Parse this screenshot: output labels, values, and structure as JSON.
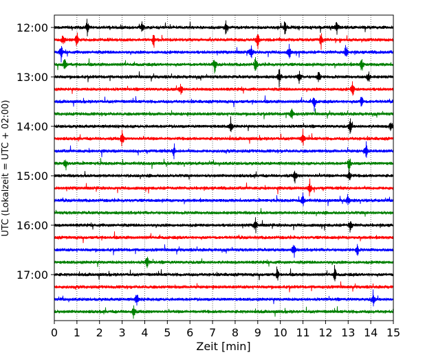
{
  "chart_data": {
    "type": "line",
    "xlabel": "Zeit  [min]",
    "ylabel": "UTC (Lokalzeit = UTC + 02:00)",
    "xlim": [
      0,
      15
    ],
    "x_ticks": [
      "0",
      "1",
      "2",
      "3",
      "4",
      "5",
      "6",
      "7",
      "8",
      "9",
      "10",
      "11",
      "12",
      "13",
      "14",
      "15"
    ],
    "y_ticks": [
      "12:00",
      "13:00",
      "14:00",
      "15:00",
      "16:00",
      "17:00"
    ],
    "trace_interval_min": 15,
    "trace_count": 24,
    "grid": "vertical dotted",
    "trace_colors": [
      "#000000",
      "#ff0000",
      "#0000ff",
      "#008000"
    ],
    "event_times_min": [
      [
        1.45,
        3.9,
        7.6,
        10.2,
        12.5
      ],
      [
        0.4,
        1.0,
        4.4,
        9.0,
        11.8
      ],
      [
        0.3,
        8.7,
        10.4,
        12.9
      ],
      [
        0.45,
        7.1,
        8.9,
        13.6
      ],
      [
        9.95,
        10.85,
        11.7,
        13.9
      ],
      [
        5.6,
        13.2
      ],
      [
        11.5,
        13.6
      ],
      [
        10.5
      ],
      [
        7.8,
        13.1,
        14.9
      ],
      [
        3.0,
        11.0
      ],
      [
        5.3,
        13.8
      ],
      [
        0.5,
        13.05
      ],
      [
        10.65,
        13.05
      ],
      [
        11.3
      ],
      [
        11.0,
        13.0
      ],
      [],
      [
        8.9,
        13.1
      ],
      [],
      [
        10.6,
        13.4
      ],
      [
        4.1
      ],
      [
        9.85,
        12.4
      ],
      [],
      [
        3.65,
        14.1
      ],
      [
        3.5
      ]
    ]
  }
}
